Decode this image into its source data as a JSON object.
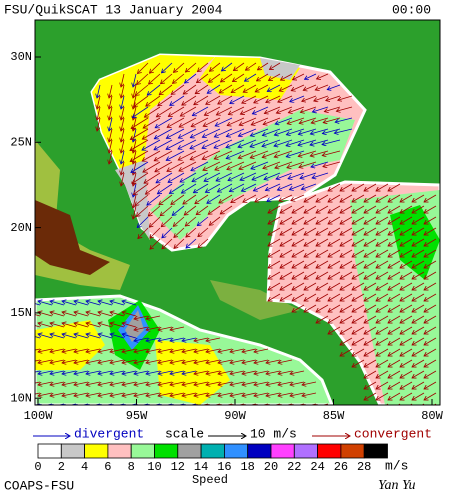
{
  "header": {
    "title": "FSU/QuikSCAT  13 January 2004",
    "time": "00:00"
  },
  "map": {
    "lat_labels": [
      "30N",
      "25N",
      "20N",
      "15N",
      "10N"
    ],
    "lon_labels": [
      "100W",
      "95W",
      "90W",
      "85W",
      "80W"
    ]
  },
  "legend": {
    "divergent": "divergent",
    "scale": "scale",
    "scale_value": "10 m/s",
    "convergent": "convergent"
  },
  "colorbar": {
    "ticks": [
      0,
      2,
      4,
      6,
      8,
      10,
      12,
      14,
      16,
      18,
      20,
      22,
      24,
      26,
      28
    ],
    "colors": [
      "#ffffff",
      "#c8c8c8",
      "#ffff00",
      "#ffc0c0",
      "#98f898",
      "#00e000",
      "#a0a0a0",
      "#00b0b0",
      "#3090ff",
      "#0000c0",
      "#ff40ff",
      "#b070ff",
      "#ff0000",
      "#d04000",
      "#000000"
    ],
    "unit": "m/s",
    "title": "Speed"
  },
  "footer": {
    "left": "COAPS-FSU",
    "right": "Yan Yu"
  }
}
